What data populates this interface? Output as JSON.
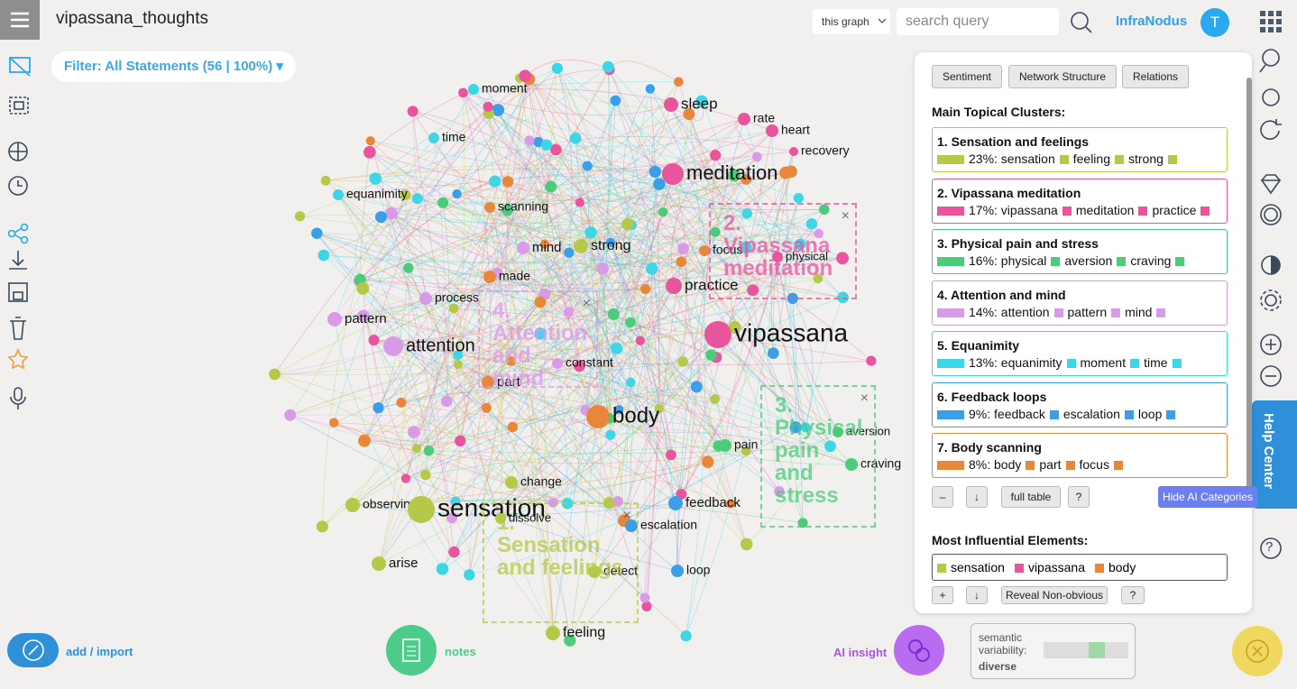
{
  "header": {
    "title": "vipassana_thoughts",
    "scope": "this graph",
    "search_placeholder": "search query",
    "brand": "InfraNodus",
    "avatar": "T"
  },
  "filter": "Filter: All Statements (56 | 100%)",
  "graph": {
    "nodes": [
      "moment",
      "sleep",
      "rate",
      "heart",
      "recovery",
      "time",
      "meditation",
      "equanimity",
      "scanning",
      "mind",
      "strong",
      "focus",
      "physical",
      "made",
      "process",
      "practice",
      "pattern",
      "attention",
      "vipassana",
      "constant",
      "part",
      "body",
      "aversion",
      "pain",
      "craving",
      "change",
      "feedback",
      "observing",
      "sensation",
      "dissolve",
      "escalation",
      "arise",
      "detect",
      "loop",
      "feeling"
    ],
    "cluster_labels": [
      "2. Vipassana meditation",
      "4. Attention and mind",
      "3. Physical pain and stress",
      "1. Sensation and feelings"
    ]
  },
  "panel": {
    "tabs": [
      "Sentiment",
      "Network Structure",
      "Relations"
    ],
    "clusters_heading": "Main Topical Clusters:",
    "clusters": [
      {
        "title": "1. Sensation and feelings",
        "color": "#b5c847",
        "terms": [
          "23%: sensation",
          "feeling",
          "strong"
        ]
      },
      {
        "title": "2. Vipassana meditation",
        "color": "#e8559c",
        "terms": [
          "17%: vipassana",
          "meditation",
          "practice"
        ]
      },
      {
        "title": "3. Physical pain and stress",
        "color": "#4ccc7a",
        "terms": [
          "16%: physical",
          "aversion",
          "craving"
        ]
      },
      {
        "title": "4. Attention and mind",
        "color": "#d99ae8",
        "terms": [
          "14%: attention",
          "pattern",
          "mind"
        ]
      },
      {
        "title": "5. Equanimity",
        "color": "#3dd6e6",
        "terms": [
          "13%: equanimity",
          "moment",
          "time"
        ]
      },
      {
        "title": "6. Feedback loops",
        "color": "#3a9ee8",
        "terms": [
          "9%: feedback",
          "escalation",
          "loop"
        ]
      },
      {
        "title": "7. Body scanning",
        "color": "#e8873a",
        "terms": [
          "8%: body",
          "part",
          "focus"
        ]
      }
    ],
    "cluster_buttons": [
      "–",
      "↓",
      "full table",
      "?"
    ],
    "hide_button": "Hide AI Categories",
    "influential_heading": "Most Influential Elements:",
    "influential": [
      {
        "term": "sensation",
        "color": "#b5c847"
      },
      {
        "term": "vipassana",
        "color": "#e8559c"
      },
      {
        "term": "body",
        "color": "#e8873a"
      }
    ],
    "influential_buttons": [
      "+",
      "↓",
      "Reveal Non-obvious",
      "?"
    ]
  },
  "footer": {
    "add": "add / import",
    "notes": "notes",
    "ai": "AI insight",
    "variability_label": "semantic variability:",
    "variability_value": "diverse",
    "help": "Help Center"
  }
}
